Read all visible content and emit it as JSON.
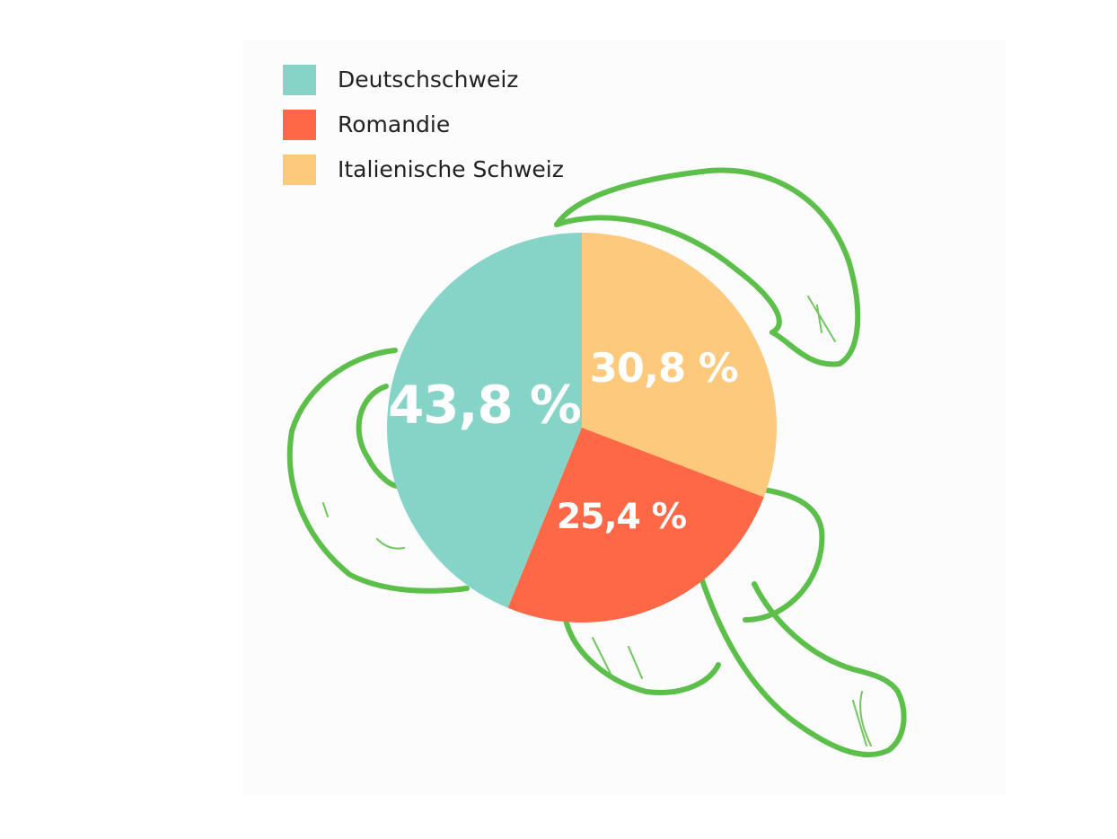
{
  "chart_data": {
    "type": "pie",
    "categories": [
      "Deutschschweiz",
      "Romandie",
      "Italienische Schweiz"
    ],
    "values": [
      43.8,
      25.4,
      30.8
    ],
    "value_labels": [
      "43,8 %",
      "25,4 %",
      "30,8 %"
    ],
    "colors": [
      "#86d4c8",
      "#fe6847",
      "#fdc97d"
    ],
    "legend": "top-left"
  }
}
